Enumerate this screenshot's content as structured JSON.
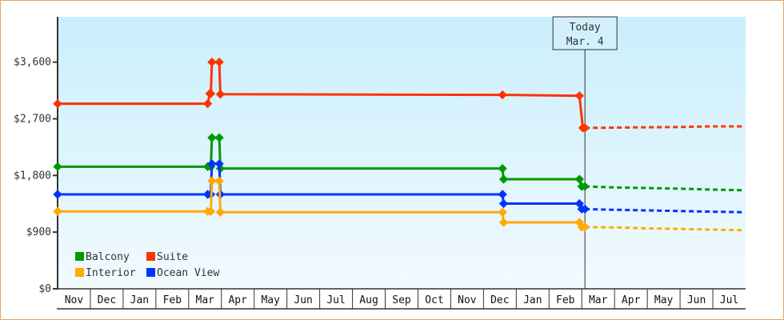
{
  "chart_data": {
    "type": "line",
    "x_axis": {
      "tick_labels": [
        "Nov",
        "Dec",
        "Jan",
        "Feb",
        "Mar",
        "Apr",
        "May",
        "Jun",
        "Jul",
        "Aug",
        "Sep",
        "Oct",
        "Nov",
        "Dec",
        "Jan",
        "Feb",
        "Mar",
        "Apr",
        "May",
        "Jun",
        "Jul"
      ]
    },
    "y_axis": {
      "ylim": [
        0,
        4320
      ],
      "ticks": [
        0,
        900,
        1800,
        2700,
        3600
      ],
      "tick_labels": [
        "$0",
        "$900",
        "$1,800",
        "$2,700",
        "$3,600"
      ]
    },
    "grid": false,
    "legend": {
      "placement": "bottom-left"
    },
    "today_marker": {
      "line1": "Today",
      "line2": "Mar. 4",
      "date": "Mar 4",
      "month_index": 16
    },
    "series": [
      {
        "name": "Suite",
        "color": "#ff3300",
        "points": [
          [
            "Nov 1",
            2940
          ],
          [
            "Mar 19",
            2940
          ],
          [
            "Mar 21",
            3100
          ],
          [
            "Mar 22",
            3100
          ],
          [
            "Mar 23",
            3600
          ],
          [
            "Mar 30",
            3600
          ],
          [
            "Mar 31",
            3090
          ],
          [
            "Dec 19",
            3080
          ],
          [
            "Feb 27",
            3065
          ],
          [
            "Mar 2",
            2555
          ],
          [
            "Mar 4",
            2555
          ]
        ],
        "forecast": [
          [
            "Mar 4",
            2555
          ],
          [
            "Apr 1",
            2560
          ],
          [
            "May 1",
            2565
          ],
          [
            "Jun 1",
            2570
          ],
          [
            "Jul 1",
            2580
          ],
          [
            "Jul 31",
            2580
          ]
        ]
      },
      {
        "name": "Balcony",
        "color": "#009900",
        "points": [
          [
            "Nov 1",
            1940
          ],
          [
            "Mar 19",
            1940
          ],
          [
            "Mar 22",
            1940
          ],
          [
            "Mar 23",
            2400
          ],
          [
            "Mar 30",
            2400
          ],
          [
            "Mar 31",
            1910
          ],
          [
            "Dec 19",
            1910
          ],
          [
            "Dec 20",
            1740
          ],
          [
            "Feb 27",
            1740
          ],
          [
            "Mar 1",
            1625
          ],
          [
            "Mar 4",
            1625
          ]
        ],
        "forecast": [
          [
            "Mar 4",
            1625
          ],
          [
            "Apr 1",
            1610
          ],
          [
            "May 1",
            1600
          ],
          [
            "Jun 1",
            1590
          ],
          [
            "Jul 1",
            1575
          ],
          [
            "Jul 31",
            1565
          ]
        ]
      },
      {
        "name": "Ocean View",
        "color": "#0033ff",
        "points": [
          [
            "Nov 1",
            1500
          ],
          [
            "Mar 19",
            1500
          ],
          [
            "Mar 22",
            1500
          ],
          [
            "Mar 23",
            1985
          ],
          [
            "Mar 30",
            1985
          ],
          [
            "Mar 31",
            1500
          ],
          [
            "Dec 19",
            1500
          ],
          [
            "Dec 20",
            1353
          ],
          [
            "Feb 27",
            1353
          ],
          [
            "Mar 1",
            1266
          ],
          [
            "Mar 4",
            1266
          ]
        ],
        "forecast": [
          [
            "Mar 4",
            1266
          ],
          [
            "Apr 1",
            1255
          ],
          [
            "May 1",
            1245
          ],
          [
            "Jun 1",
            1235
          ],
          [
            "Jul 1",
            1225
          ],
          [
            "Jul 31",
            1216
          ]
        ]
      },
      {
        "name": "Interior",
        "color": "#ffaa00",
        "points": [
          [
            "Nov 1",
            1229
          ],
          [
            "Mar 19",
            1229
          ],
          [
            "Mar 22",
            1229
          ],
          [
            "Mar 23",
            1713
          ],
          [
            "Mar 30",
            1713
          ],
          [
            "Mar 31",
            1216
          ],
          [
            "Dec 19",
            1216
          ],
          [
            "Dec 20",
            1055
          ],
          [
            "Feb 27",
            1055
          ],
          [
            "Mar 1",
            980
          ],
          [
            "Mar 4",
            980
          ]
        ],
        "forecast": [
          [
            "Mar 4",
            980
          ],
          [
            "Apr 1",
            975
          ],
          [
            "May 1",
            960
          ],
          [
            "Jun 1",
            950
          ],
          [
            "Jul 1",
            940
          ],
          [
            "Jul 31",
            930
          ]
        ]
      }
    ],
    "legend_entries": [
      "Balcony",
      "Suite",
      "Interior",
      "Ocean View"
    ]
  }
}
